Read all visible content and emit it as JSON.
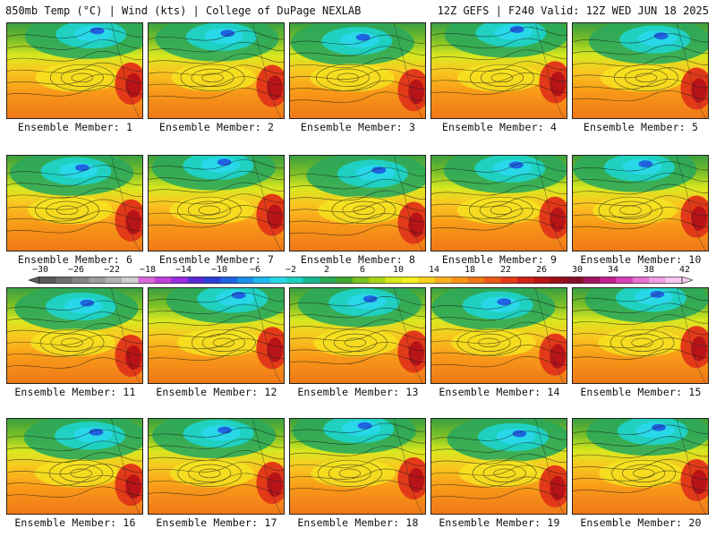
{
  "header": {
    "title_left": "850mb Temp (°C) | Wind (kts) | College of DuPage NEXLAB",
    "title_right": "12Z GEFS | F240 Valid: 12Z WED JUN 18 2025"
  },
  "colorbar": {
    "labels": [
      "−30",
      "−26",
      "−22",
      "−18",
      "−14",
      "−10",
      "−6",
      "−2",
      "2",
      "6",
      "10",
      "14",
      "18",
      "22",
      "26",
      "30",
      "34",
      "38",
      "42"
    ],
    "values": [
      -30,
      -26,
      -22,
      -18,
      -14,
      -10,
      -6,
      -2,
      2,
      6,
      10,
      14,
      18,
      22,
      26,
      30,
      34,
      38,
      42
    ],
    "colors": [
      "#5a5a5a",
      "#6e6e6e",
      "#858585",
      "#9c9c9c",
      "#b3b3b3",
      "#cfcfcf",
      "#d66ad6",
      "#c040d8",
      "#9a2ee0",
      "#5b2ad6",
      "#2d3fd8",
      "#1f63e0",
      "#1c90e8",
      "#20b8ee",
      "#28d8e8",
      "#20d0c0",
      "#1ab88e",
      "#2ca85a",
      "#3fa62c",
      "#78c020",
      "#a8d418",
      "#d8e81a",
      "#f5f020",
      "#f8d020",
      "#f8b020",
      "#f89418",
      "#f07818",
      "#ea5a18",
      "#e23a18",
      "#d02418",
      "#b81418",
      "#9a0e1a",
      "#861028",
      "#a01460",
      "#c02090",
      "#d840b8",
      "#e870d0",
      "#f0a0e0",
      "#f6c8ee"
    ]
  },
  "members": [
    {
      "label": "Ensemble Member: 1"
    },
    {
      "label": "Ensemble Member: 2"
    },
    {
      "label": "Ensemble Member: 3"
    },
    {
      "label": "Ensemble Member: 4"
    },
    {
      "label": "Ensemble Member: 5"
    },
    {
      "label": "Ensemble Member: 6"
    },
    {
      "label": "Ensemble Member: 7"
    },
    {
      "label": "Ensemble Member: 8"
    },
    {
      "label": "Ensemble Member: 9"
    },
    {
      "label": "Ensemble Member: 10"
    },
    {
      "label": "Ensemble Member: 11"
    },
    {
      "label": "Ensemble Member: 12"
    },
    {
      "label": "Ensemble Member: 13"
    },
    {
      "label": "Ensemble Member: 14"
    },
    {
      "label": "Ensemble Member: 15"
    },
    {
      "label": "Ensemble Member: 16"
    },
    {
      "label": "Ensemble Member: 17"
    },
    {
      "label": "Ensemble Member: 18"
    },
    {
      "label": "Ensemble Member: 19"
    },
    {
      "label": "Ensemble Member: 20"
    }
  ]
}
